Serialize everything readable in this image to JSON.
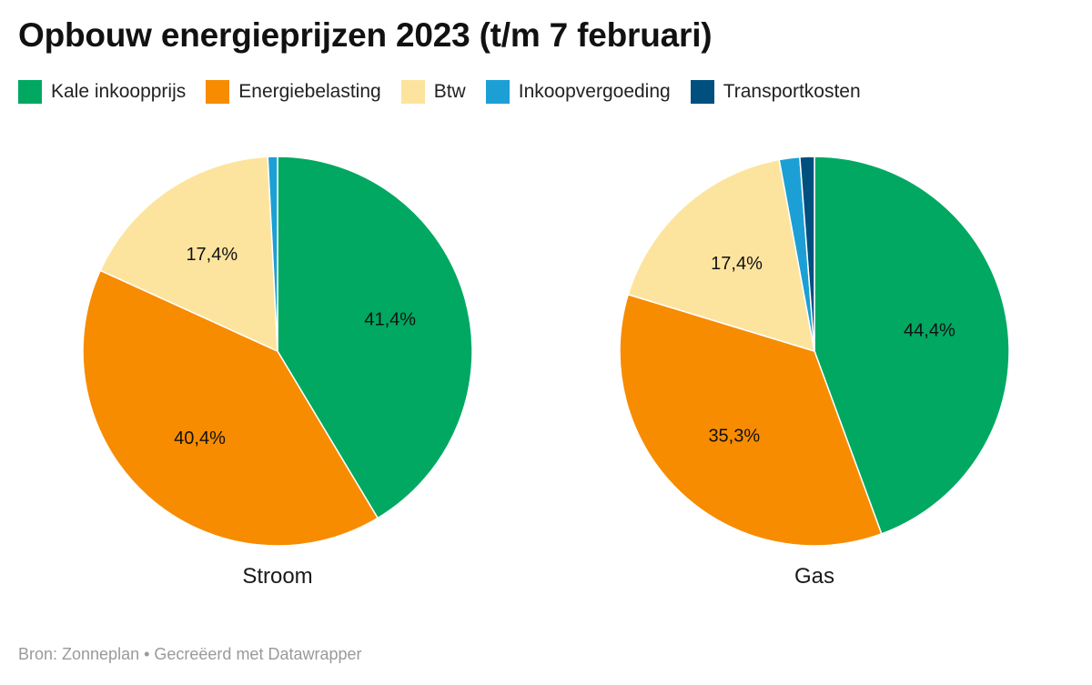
{
  "chart_data": {
    "type": "pie",
    "title": "Opbouw energieprijzen 2023 (t/m 7 februari)",
    "legend": {
      "placement": "top-left",
      "entries": [
        {
          "name": "Kale inkoopprijs",
          "color": "#00a862"
        },
        {
          "name": "Energiebelasting",
          "color": "#f78c00"
        },
        {
          "name": "Btw",
          "color": "#fde49e"
        },
        {
          "name": "Inkoopvergoeding",
          "color": "#1c9fd4"
        },
        {
          "name": "Transportkosten",
          "color": "#00507f"
        }
      ]
    },
    "charts": [
      {
        "name": "Stroom",
        "slices": [
          {
            "category": "Kale inkoopprijs",
            "value": 41.4,
            "label": "41,4%"
          },
          {
            "category": "Energiebelasting",
            "value": 40.4,
            "label": "40,4%"
          },
          {
            "category": "Btw",
            "value": 17.4,
            "label": "17,4%"
          },
          {
            "category": "Inkoopvergoeding",
            "value": 0.8,
            "label": ""
          }
        ]
      },
      {
        "name": "Gas",
        "slices": [
          {
            "category": "Kale inkoopprijs",
            "value": 44.4,
            "label": "44,4%"
          },
          {
            "category": "Energiebelasting",
            "value": 35.3,
            "label": "35,3%"
          },
          {
            "category": "Btw",
            "value": 17.4,
            "label": "17,4%"
          },
          {
            "category": "Inkoopvergoeding",
            "value": 1.7,
            "label": ""
          },
          {
            "category": "Transportkosten",
            "value": 1.2,
            "label": ""
          }
        ]
      }
    ]
  },
  "footer": {
    "source": "Bron: Zonneplan • Gecreëerd met Datawrapper"
  }
}
